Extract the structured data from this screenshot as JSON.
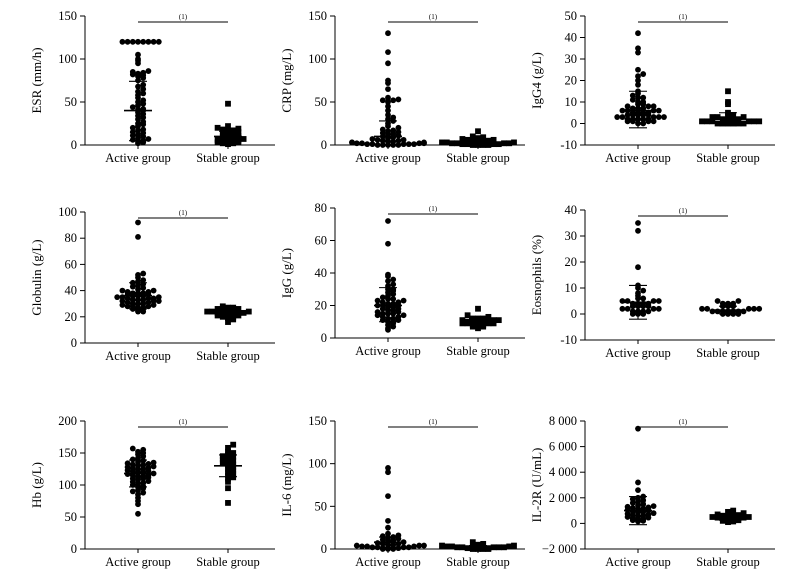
{
  "chart_data": [
    {
      "type": "scatter",
      "ylabel": "ESR (mm/h)",
      "ylim": [
        0,
        150
      ],
      "yticks": [
        0,
        50,
        100,
        150
      ],
      "categories": [
        "Active group",
        "Stable group"
      ],
      "significance": "(1)",
      "series": [
        {
          "marker": "circle",
          "mean": 40,
          "sd_low": 5,
          "sd_high": 74,
          "values": [
            2,
            3,
            4,
            5,
            6,
            7,
            8,
            10,
            11,
            12,
            14,
            15,
            17,
            18,
            20,
            22,
            24,
            25,
            27,
            30,
            32,
            34,
            36,
            38,
            40,
            41,
            42,
            44,
            46,
            48,
            50,
            52,
            55,
            58,
            60,
            62,
            65,
            68,
            70,
            75,
            78,
            80,
            81,
            82,
            83,
            84,
            85,
            86,
            95,
            98,
            100,
            105,
            120,
            120,
            120,
            120,
            120,
            120,
            120,
            120
          ]
        },
        {
          "marker": "square",
          "mean": 10,
          "sd_low": 2,
          "sd_high": 16,
          "values": [
            1,
            2,
            2,
            3,
            3,
            4,
            4,
            5,
            5,
            6,
            7,
            8,
            9,
            10,
            11,
            12,
            13,
            14,
            15,
            16,
            17,
            18,
            19,
            20,
            22,
            48
          ]
        }
      ]
    },
    {
      "type": "scatter",
      "ylabel": "CRP (mg/L)",
      "ylim": [
        0,
        150
      ],
      "yticks": [
        0,
        50,
        100,
        150
      ],
      "categories": [
        "Active group",
        "Stable group"
      ],
      "significance": "(1)",
      "series": [
        {
          "marker": "circle",
          "mean": 10,
          "sd_low": 0,
          "sd_high": 28,
          "values": [
            0,
            0,
            0,
            0,
            0,
            1,
            1,
            1,
            1,
            1,
            2,
            2,
            2,
            2,
            3,
            3,
            3,
            4,
            4,
            5,
            5,
            6,
            6,
            7,
            8,
            9,
            10,
            11,
            12,
            13,
            14,
            15,
            16,
            17,
            18,
            20,
            22,
            25,
            28,
            30,
            32,
            35,
            40,
            45,
            50,
            52,
            52,
            53,
            55,
            65,
            72,
            75,
            95,
            108,
            130
          ]
        },
        {
          "marker": "square",
          "mean": 3,
          "sd_low": 0,
          "sd_high": 7,
          "values": [
            0,
            0,
            0,
            0,
            1,
            1,
            1,
            1,
            2,
            2,
            2,
            2,
            3,
            3,
            3,
            4,
            4,
            5,
            5,
            6,
            6,
            7,
            8,
            9,
            10,
            16
          ]
        }
      ]
    },
    {
      "type": "scatter",
      "ylabel": "IgG4 (g/L)",
      "ylim": [
        -10,
        50
      ],
      "yticks": [
        -10,
        0,
        10,
        20,
        30,
        40,
        50
      ],
      "categories": [
        "Active group",
        "Stable group"
      ],
      "significance": "(1)",
      "series": [
        {
          "marker": "circle",
          "mean": 6,
          "sd_low": -2,
          "sd_high": 15,
          "values": [
            0,
            0,
            1,
            1,
            1,
            1,
            2,
            2,
            2,
            2,
            2,
            3,
            3,
            3,
            3,
            3,
            4,
            4,
            4,
            4,
            4,
            5,
            5,
            5,
            5,
            6,
            6,
            6,
            6,
            7,
            7,
            7,
            8,
            8,
            8,
            9,
            9,
            10,
            10,
            11,
            12,
            12,
            13,
            14,
            15,
            18,
            20,
            22,
            23,
            25,
            33,
            35,
            42
          ]
        },
        {
          "marker": "square",
          "mean": 2,
          "sd_low": -1,
          "sd_high": 5,
          "values": [
            0,
            0,
            0,
            0,
            0,
            0,
            1,
            1,
            1,
            1,
            1,
            1,
            2,
            2,
            2,
            2,
            3,
            3,
            3,
            4,
            4,
            5,
            9,
            10,
            15
          ]
        }
      ]
    },
    {
      "type": "scatter",
      "ylabel": "Globulin (g/L)",
      "ylim": [
        0,
        100
      ],
      "yticks": [
        0,
        20,
        40,
        60,
        80,
        100
      ],
      "categories": [
        "Active group",
        "Stable group"
      ],
      "significance": "(1)",
      "series": [
        {
          "marker": "circle",
          "mean": 36,
          "sd_low": 26,
          "sd_high": 46,
          "values": [
            24,
            24,
            25,
            26,
            26,
            27,
            27,
            28,
            28,
            28,
            29,
            29,
            30,
            30,
            30,
            31,
            31,
            32,
            32,
            32,
            33,
            33,
            33,
            34,
            34,
            34,
            35,
            35,
            35,
            36,
            36,
            36,
            37,
            37,
            38,
            38,
            38,
            39,
            39,
            40,
            40,
            41,
            42,
            43,
            44,
            45,
            46,
            47,
            48,
            50,
            52,
            53,
            81,
            92
          ]
        },
        {
          "marker": "square",
          "mean": 23,
          "sd_low": 20,
          "sd_high": 26,
          "values": [
            16,
            18,
            19,
            20,
            20,
            21,
            21,
            22,
            22,
            22,
            23,
            23,
            23,
            24,
            24,
            24,
            25,
            25,
            25,
            26,
            26,
            27,
            27,
            28
          ]
        }
      ]
    },
    {
      "type": "scatter",
      "ylabel": "IgG (g/L)",
      "ylim": [
        0,
        80
      ],
      "yticks": [
        0,
        20,
        40,
        60,
        80
      ],
      "categories": [
        "Active group",
        "Stable group"
      ],
      "significance": "(1)",
      "series": [
        {
          "marker": "circle",
          "mean": 20,
          "sd_low": 10,
          "sd_high": 31,
          "values": [
            5,
            6,
            7,
            8,
            9,
            10,
            10,
            11,
            11,
            12,
            12,
            13,
            13,
            14,
            14,
            15,
            15,
            15,
            16,
            16,
            17,
            17,
            18,
            18,
            19,
            19,
            20,
            20,
            20,
            21,
            21,
            22,
            22,
            23,
            23,
            24,
            24,
            25,
            26,
            27,
            28,
            29,
            30,
            30,
            32,
            33,
            35,
            36,
            38,
            39,
            58,
            72
          ]
        },
        {
          "marker": "square",
          "mean": 10,
          "sd_low": 8,
          "sd_high": 12,
          "values": [
            6,
            7,
            7,
            8,
            8,
            8,
            9,
            9,
            9,
            9,
            10,
            10,
            10,
            10,
            10,
            11,
            11,
            11,
            12,
            12,
            12,
            13,
            14,
            18
          ]
        }
      ]
    },
    {
      "type": "scatter",
      "ylabel": "Eosnophils (%)",
      "ylim": [
        -10,
        40
      ],
      "yticks": [
        -10,
        0,
        10,
        20,
        30,
        40
      ],
      "categories": [
        "Active group",
        "Stable group"
      ],
      "significance": "(1)",
      "series": [
        {
          "marker": "circle",
          "mean": 4.5,
          "sd_low": -2,
          "sd_high": 11,
          "values": [
            0,
            0,
            0,
            1,
            1,
            1,
            1,
            2,
            2,
            2,
            2,
            3,
            3,
            3,
            3,
            4,
            4,
            4,
            4,
            5,
            5,
            5,
            5,
            6,
            6,
            7,
            8,
            9,
            10,
            11,
            18,
            32,
            35
          ]
        },
        {
          "marker": "circle",
          "mean": 1.5,
          "sd_low": 0,
          "sd_high": 3,
          "values": [
            0,
            0,
            0,
            0,
            1,
            1,
            1,
            1,
            1,
            1,
            1,
            2,
            2,
            2,
            2,
            2,
            3,
            3,
            3,
            4,
            4,
            4,
            5,
            5
          ]
        }
      ]
    },
    {
      "type": "scatter",
      "ylabel": "Hb (g/L)",
      "ylim": [
        0,
        200
      ],
      "yticks": [
        0,
        50,
        100,
        150,
        200
      ],
      "categories": [
        "Active group",
        "Stable group"
      ],
      "significance": "(1)",
      "series": [
        {
          "marker": "circle",
          "mean": 118,
          "sd_low": 97,
          "sd_high": 139,
          "values": [
            55,
            70,
            75,
            80,
            85,
            88,
            90,
            92,
            95,
            97,
            98,
            100,
            102,
            103,
            105,
            106,
            108,
            110,
            110,
            112,
            113,
            114,
            115,
            116,
            117,
            118,
            119,
            120,
            121,
            122,
            123,
            124,
            125,
            126,
            127,
            128,
            129,
            130,
            131,
            132,
            133,
            134,
            135,
            136,
            138,
            140,
            142,
            145,
            148,
            150,
            152,
            155,
            157
          ]
        },
        {
          "marker": "square",
          "mean": 130,
          "sd_low": 113,
          "sd_high": 147,
          "values": [
            72,
            95,
            105,
            110,
            112,
            115,
            118,
            120,
            122,
            125,
            128,
            130,
            132,
            135,
            137,
            138,
            140,
            142,
            144,
            145,
            148,
            150,
            152,
            158,
            163
          ]
        }
      ]
    },
    {
      "type": "scatter",
      "ylabel": "IL-6 (mg/L)",
      "ylim": [
        0,
        150
      ],
      "yticks": [
        0,
        50,
        100,
        150
      ],
      "categories": [
        "Active group",
        "Stable group"
      ],
      "significance": "(1)",
      "series": [
        {
          "marker": "circle",
          "mean": 8,
          "sd_low": 2,
          "sd_high": 14,
          "values": [
            0,
            0,
            0,
            1,
            1,
            1,
            1,
            2,
            2,
            2,
            2,
            3,
            3,
            3,
            4,
            4,
            4,
            5,
            5,
            6,
            6,
            7,
            8,
            9,
            10,
            11,
            12,
            13,
            14,
            15,
            16,
            18,
            25,
            33,
            62,
            90,
            95
          ]
        },
        {
          "marker": "square",
          "mean": 2,
          "sd_low": 0,
          "sd_high": 4,
          "values": [
            0,
            0,
            0,
            0,
            1,
            1,
            1,
            1,
            1,
            2,
            2,
            2,
            2,
            2,
            3,
            3,
            3,
            4,
            4,
            5,
            6,
            8
          ]
        }
      ]
    },
    {
      "type": "scatter",
      "ylabel": "IL-2R (U/mL)",
      "ylim": [
        -2000,
        8000
      ],
      "yticks": [
        -2000,
        0,
        2000,
        4000,
        6000,
        8000
      ],
      "ytick_labels": [
        "−2 000",
        "0",
        "2 000",
        "4 000",
        "6 000",
        "8 000"
      ],
      "categories": [
        "Active group",
        "Stable group"
      ],
      "significance": "(1)",
      "series": [
        {
          "marker": "circle",
          "mean": 1000,
          "sd_low": -100,
          "sd_high": 2100,
          "values": [
            150,
            200,
            250,
            300,
            350,
            400,
            450,
            500,
            550,
            600,
            650,
            700,
            750,
            800,
            850,
            900,
            950,
            1000,
            1050,
            1100,
            1150,
            1200,
            1250,
            1300,
            1350,
            1400,
            1500,
            1600,
            1700,
            1800,
            1900,
            2000,
            2100,
            2600,
            3200,
            7400
          ]
        },
        {
          "marker": "square",
          "mean": 500,
          "sd_low": 250,
          "sd_high": 750,
          "values": [
            100,
            150,
            200,
            250,
            300,
            350,
            400,
            400,
            450,
            450,
            500,
            500,
            550,
            550,
            600,
            650,
            700,
            800,
            900,
            1000
          ]
        }
      ]
    }
  ]
}
